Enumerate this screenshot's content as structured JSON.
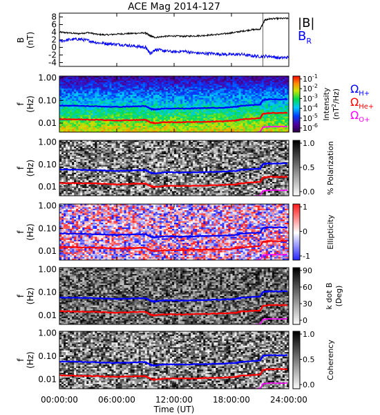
{
  "chart_data": [
    {
      "type": "line",
      "title": "ACE Mag 2014-127",
      "ylabel_top": "B",
      "ylabel_bottom": "(nT)",
      "ylim": [
        -5,
        9
      ],
      "yticks": [
        8,
        6,
        4,
        2,
        0,
        -2,
        -4
      ],
      "xlim": [
        0,
        24
      ],
      "series": [
        {
          "name": "|B|",
          "color": "#000000",
          "x": [
            0,
            1,
            2,
            3,
            4,
            5,
            6,
            7,
            8,
            9,
            9.5,
            10,
            11,
            12,
            13,
            14,
            15,
            16,
            17,
            18,
            19,
            20,
            21,
            21.5,
            22,
            23,
            24
          ],
          "y": [
            4.0,
            3.8,
            3.6,
            3.9,
            3.4,
            3.3,
            3.5,
            3.6,
            3.7,
            3.8,
            3.0,
            2.6,
            2.9,
            3.0,
            2.9,
            3.0,
            3.1,
            3.3,
            3.5,
            3.8,
            4.2,
            4.6,
            4.8,
            7.2,
            7.5,
            7.6,
            7.6
          ]
        },
        {
          "name": "B_R",
          "color": "#0000ff",
          "x": [
            0,
            1,
            2,
            3,
            4,
            5,
            6,
            7,
            8,
            9,
            9.5,
            10,
            11,
            12,
            13,
            14,
            15,
            16,
            17,
            18,
            19,
            20,
            21,
            22,
            23,
            24
          ],
          "y": [
            1.6,
            2.0,
            2.2,
            1.8,
            1.2,
            1.0,
            0.8,
            0.6,
            0.3,
            0.0,
            -1.6,
            -0.6,
            -0.9,
            -1.2,
            -1.0,
            -1.4,
            -1.6,
            -1.6,
            -1.8,
            -1.9,
            -1.8,
            -2.2,
            -2.4,
            -2.3,
            -2.8,
            -2.6
          ]
        }
      ],
      "legend": [
        "|B|",
        "B",
        "R"
      ]
    },
    {
      "type": "heatmap",
      "ylabel": [
        "f",
        "(Hz)"
      ],
      "ylim": [
        0.004,
        1.2
      ],
      "yticks": [
        "1.00",
        "0.10",
        "0.01"
      ],
      "colorbar": {
        "label": [
          "Intensity",
          "(nT",
          "2",
          "/Hz)"
        ],
        "ticks": [
          "10",
          "10",
          "10",
          "10",
          "10",
          "10"
        ],
        "exponents": [
          "-1",
          "-2",
          "-3",
          "-4",
          "-5",
          "-6"
        ],
        "scale": "rainbow"
      },
      "legend": [
        "Ω",
        "H+",
        "Ω",
        "He+",
        "Ω",
        "O+"
      ]
    },
    {
      "type": "heatmap",
      "ylabel": [
        "f",
        "(Hz)"
      ],
      "yticks": [
        "1.00",
        "0.10",
        "0.01"
      ],
      "colorbar": {
        "label": "% Polarization",
        "ticks": [
          "1.0",
          "0.5",
          "0.0"
        ],
        "scale": "gray"
      }
    },
    {
      "type": "heatmap",
      "ylabel": [
        "f",
        "(Hz)"
      ],
      "yticks": [
        "1.00",
        "0.10",
        "0.01"
      ],
      "colorbar": {
        "label": "Ellipticity",
        "ticks": [
          "1",
          "0",
          "-1"
        ],
        "scale": "bwr"
      }
    },
    {
      "type": "heatmap",
      "ylabel": [
        "f",
        "(Hz)"
      ],
      "yticks": [
        "1.00",
        "0.10",
        "0.01"
      ],
      "colorbar": {
        "label": [
          "k dot B",
          "(Deg)"
        ],
        "ticks": [
          "90",
          "60",
          "30",
          "0"
        ],
        "scale": "gray"
      }
    },
    {
      "type": "heatmap",
      "ylabel": [
        "f",
        "(Hz)"
      ],
      "yticks": [
        "1.00",
        "0.10",
        "0.01"
      ],
      "colorbar": {
        "label": "Coherency",
        "ticks": [
          "1.0",
          "0.5",
          "0.0"
        ],
        "scale": "gray"
      }
    }
  ],
  "gyro_lines": {
    "x": [
      0,
      2,
      4,
      6,
      8,
      9,
      9.6,
      10,
      11,
      13,
      15,
      17,
      18.5,
      19,
      21,
      21.3,
      22,
      24
    ],
    "H+": [
      0.06,
      0.058,
      0.055,
      0.052,
      0.055,
      0.056,
      0.042,
      0.04,
      0.045,
      0.044,
      0.046,
      0.048,
      0.052,
      0.058,
      0.066,
      0.105,
      0.112,
      0.112
    ],
    "He+": [
      0.015,
      0.0145,
      0.014,
      0.013,
      0.0138,
      0.014,
      0.0105,
      0.01,
      0.011,
      0.011,
      0.0115,
      0.012,
      0.013,
      0.0145,
      0.0165,
      0.026,
      0.028,
      0.028
    ],
    "O+": [
      0.0038,
      0.0036,
      0.0035,
      0.0033,
      0.0034,
      0.0035,
      0.0026,
      0.0025,
      0.0028,
      0.0028,
      0.0029,
      0.003,
      0.0033,
      0.0036,
      0.0041,
      0.0066,
      0.007,
      0.007
    ]
  },
  "xaxis": {
    "label": "Time (UT)",
    "ticks": [
      "00:00:00",
      "06:00:00",
      "12:00:00",
      "18:00:00",
      "24:00:00"
    ]
  }
}
